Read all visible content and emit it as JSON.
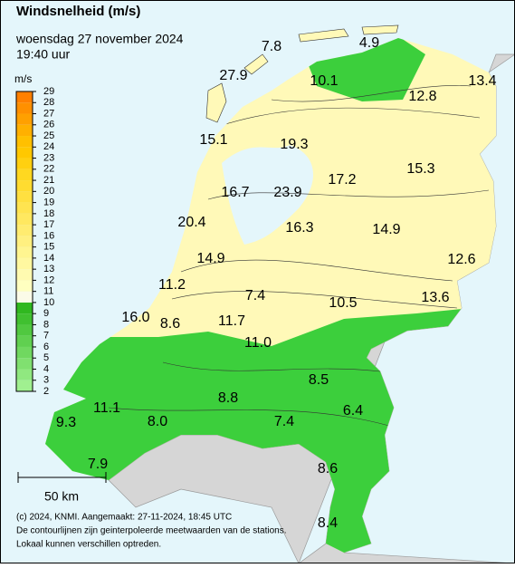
{
  "header": {
    "title": "Windsnelheid (m/s)",
    "date": "woensdag 27 november 2024",
    "time": "19:40 uur"
  },
  "legend": {
    "unit": "m/s",
    "levels": [
      2,
      3,
      4,
      5,
      6,
      7,
      8,
      9,
      10,
      11,
      12,
      13,
      14,
      15,
      16,
      17,
      18,
      19,
      20,
      21,
      22,
      23,
      24,
      25,
      26,
      27,
      28,
      29
    ],
    "colors": [
      "#a0f090",
      "#90e880",
      "#80e070",
      "#70d860",
      "#60d050",
      "#50c840",
      "#40c030",
      "#30b820",
      "#fbfbe8",
      "#ffffc0",
      "#fffab0",
      "#fff8a0",
      "#fff590",
      "#fff080",
      "#ffec70",
      "#ffe860",
      "#ffe450",
      "#ffe040",
      "#ffdc30",
      "#ffd820",
      "#ffd010",
      "#ffc800",
      "#ffc000",
      "#ffb000",
      "#ffa000",
      "#ff9000",
      "#ff8000"
    ]
  },
  "stations": [
    "7.8",
    "4.9",
    "27.9",
    "10.1",
    "12.8",
    "13.4",
    "15.1",
    "19.3",
    "17.2",
    "15.3",
    "16.7",
    "23.9",
    "20.4",
    "16.3",
    "14.9",
    "12.6",
    "14.9",
    "11.2",
    "7.4",
    "13.6",
    "10.5",
    "16.0",
    "8.6",
    "11.7",
    "11.0",
    "8.5",
    "8.8",
    "6.4",
    "11.1",
    "9.3",
    "8.0",
    "7.4",
    "7.9",
    "8.6",
    "8.4"
  ],
  "scale": "50 km",
  "footer": [
    "(c) 2024, KNMI. Aangemaakt: 27-11-2024, 18:45 UTC",
    "De contourlijnen zijn geinterpoleerde meetwaarden van de stations.",
    "Lokaal kunnen verschillen optreden."
  ]
}
